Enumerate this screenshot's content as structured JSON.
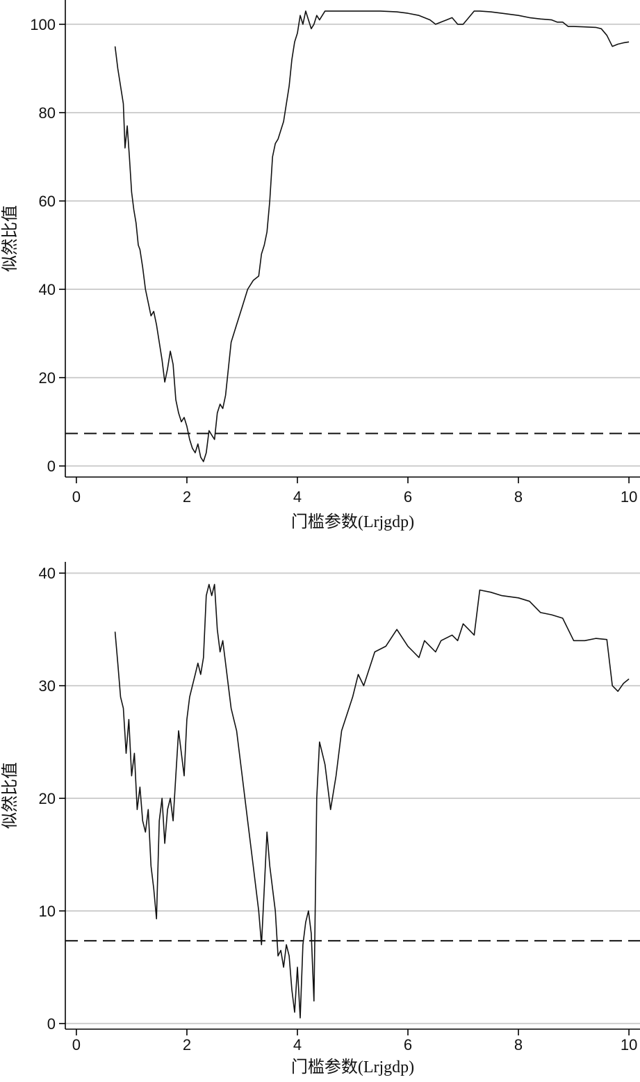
{
  "chart_data": [
    {
      "type": "line",
      "xlabel": "门槛参数(Lrjgdp)",
      "ylabel": "似然比值",
      "xlim": [
        -0.2,
        10.2
      ],
      "ylim": [
        -2.5,
        105.5
      ],
      "xticks": [
        0,
        2,
        4,
        6,
        8,
        10
      ],
      "yticks": [
        0,
        20,
        40,
        60,
        80,
        100
      ],
      "grid": true,
      "threshold": 7.35,
      "series": [
        {
          "x": [
            0.7,
            0.75,
            0.8,
            0.85,
            0.88,
            0.92,
            0.96,
            1.0,
            1.04,
            1.08,
            1.12,
            1.15,
            1.2,
            1.25,
            1.3,
            1.35,
            1.4,
            1.45,
            1.5,
            1.55,
            1.6,
            1.65,
            1.7,
            1.75,
            1.8,
            1.85,
            1.9,
            1.95,
            2.0,
            2.05,
            2.1,
            2.15,
            2.2,
            2.25,
            2.3,
            2.35,
            2.4,
            2.45,
            2.5,
            2.55,
            2.6,
            2.65,
            2.7,
            2.75,
            2.8,
            2.9,
            3.0,
            3.1,
            3.2,
            3.3,
            3.35,
            3.4,
            3.45,
            3.5,
            3.55,
            3.6,
            3.65,
            3.7,
            3.75,
            3.8,
            3.85,
            3.9,
            3.95,
            4.0,
            4.05,
            4.1,
            4.15,
            4.2,
            4.25,
            4.3,
            4.35,
            4.4,
            4.5,
            4.6,
            4.8,
            5.0,
            5.2,
            5.5,
            5.8,
            6.0,
            6.2,
            6.4,
            6.5,
            6.7,
            6.8,
            6.9,
            7.0,
            7.1,
            7.2,
            7.3,
            7.5,
            7.7,
            8.0,
            8.2,
            8.4,
            8.6,
            8.7,
            8.8,
            8.9,
            9.0,
            9.2,
            9.4,
            9.5,
            9.6,
            9.7,
            9.8,
            9.9,
            10.0
          ],
          "y": [
            95,
            90,
            86,
            82,
            72,
            77,
            70,
            62,
            58,
            55,
            50,
            49,
            45,
            40,
            37,
            34,
            35,
            32,
            28,
            24,
            19,
            22,
            26,
            23,
            15,
            12,
            10,
            11,
            9,
            6,
            4,
            3,
            5,
            2,
            1,
            3,
            8,
            7,
            6,
            12,
            14,
            13,
            16,
            22,
            28,
            32,
            36,
            40,
            42,
            43,
            48,
            50,
            53,
            60,
            70,
            73,
            74,
            76,
            78,
            82,
            86,
            92,
            96,
            98,
            102,
            100,
            103,
            101,
            99,
            100,
            102,
            101,
            103,
            103,
            103,
            103,
            103,
            103,
            102.8,
            102.5,
            102,
            101,
            100,
            101,
            101.5,
            100,
            100,
            101.5,
            103,
            103,
            102.8,
            102.5,
            102,
            101.5,
            101.2,
            101,
            100.5,
            100.5,
            99.5,
            99.5,
            99.4,
            99.3,
            99,
            97.5,
            95,
            95.5,
            95.8,
            96
          ]
        }
      ]
    },
    {
      "type": "line",
      "xlabel": "门槛参数(Lrjgdp)",
      "ylabel": "似然比值",
      "xlim": [
        -0.2,
        10.2
      ],
      "ylim": [
        -0.5,
        41
      ],
      "xticks": [
        0,
        2,
        4,
        6,
        8,
        10
      ],
      "yticks": [
        0,
        10,
        20,
        30,
        40
      ],
      "grid": true,
      "threshold": 7.35,
      "series": [
        {
          "x": [
            0.7,
            0.75,
            0.8,
            0.85,
            0.9,
            0.95,
            1.0,
            1.05,
            1.1,
            1.15,
            1.2,
            1.25,
            1.3,
            1.35,
            1.4,
            1.45,
            1.5,
            1.55,
            1.6,
            1.65,
            1.7,
            1.75,
            1.8,
            1.85,
            1.9,
            1.95,
            2.0,
            2.05,
            2.1,
            2.15,
            2.2,
            2.25,
            2.3,
            2.35,
            2.4,
            2.45,
            2.5,
            2.55,
            2.6,
            2.65,
            2.7,
            2.75,
            2.8,
            2.85,
            2.9,
            3.0,
            3.1,
            3.2,
            3.3,
            3.35,
            3.4,
            3.45,
            3.5,
            3.55,
            3.6,
            3.65,
            3.7,
            3.75,
            3.8,
            3.85,
            3.9,
            3.95,
            4.0,
            4.05,
            4.1,
            4.15,
            4.2,
            4.25,
            4.3,
            4.35,
            4.4,
            4.45,
            4.5,
            4.6,
            4.7,
            4.75,
            4.8,
            5.0,
            5.1,
            5.2,
            5.4,
            5.6,
            5.8,
            6.0,
            6.1,
            6.2,
            6.3,
            6.4,
            6.5,
            6.6,
            6.8,
            6.9,
            7.0,
            7.1,
            7.2,
            7.3,
            7.5,
            7.7,
            8.0,
            8.2,
            8.4,
            8.6,
            8.8,
            9.0,
            9.2,
            9.4,
            9.6,
            9.7,
            9.8,
            9.9,
            10.0
          ],
          "y": [
            34.8,
            32,
            29,
            28,
            24,
            27,
            22,
            24,
            19,
            21,
            18,
            17,
            19,
            14,
            12,
            9.3,
            18,
            20,
            16,
            19,
            20,
            18,
            22,
            26,
            24,
            22,
            27,
            29,
            30,
            31,
            32,
            31,
            32.5,
            38,
            39,
            38,
            39,
            35,
            33,
            34,
            32,
            30,
            28,
            27,
            26,
            22,
            18,
            14,
            10,
            7,
            12,
            17,
            14,
            12,
            10,
            6,
            6.5,
            5,
            7,
            6,
            3,
            1,
            5,
            0.5,
            7,
            9,
            10,
            8,
            2,
            20,
            25,
            24,
            23,
            19,
            22,
            24,
            26,
            29,
            31,
            30,
            33,
            33.5,
            35,
            33.5,
            33,
            32.5,
            34,
            33.5,
            33,
            34,
            34.5,
            34,
            35.5,
            35,
            34.5,
            38.5,
            38.3,
            38,
            37.8,
            37.5,
            36.5,
            36.3,
            36,
            34,
            34,
            34.2,
            34.1,
            30,
            29.5,
            30.2,
            30.6
          ]
        }
      ]
    }
  ]
}
